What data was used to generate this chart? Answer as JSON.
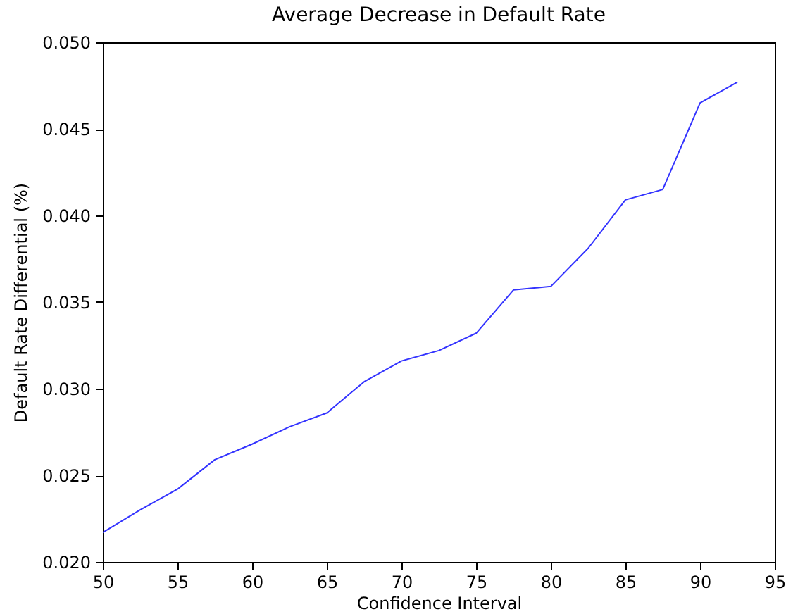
{
  "chart_data": {
    "type": "line",
    "title": "Average Decrease in Default Rate",
    "xlabel": "Confidence Interval",
    "ylabel": "Default Rate Differential (%)",
    "x": [
      50,
      52.5,
      55,
      57.5,
      60,
      62.5,
      65,
      67.5,
      70,
      72.5,
      75,
      77.5,
      80,
      82.5,
      85,
      87.5,
      90,
      92.5
    ],
    "series": [
      {
        "color": "#3333ff",
        "values": [
          0.0217,
          0.023,
          0.0242,
          0.0259,
          0.0268,
          0.0278,
          0.0286,
          0.0304,
          0.0316,
          0.0322,
          0.0332,
          0.0357,
          0.0359,
          0.0381,
          0.0409,
          0.0415,
          0.0465,
          0.0477
        ]
      }
    ],
    "xlim": [
      50,
      95
    ],
    "xticks": [
      50,
      55,
      60,
      65,
      70,
      75,
      80,
      85,
      90,
      95
    ],
    "ylim": [
      0.02,
      0.05
    ],
    "yticks": [
      {
        "value": 0.02,
        "label": "0.020"
      },
      {
        "value": 0.025,
        "label": "0.025"
      },
      {
        "value": 0.03,
        "label": "0.030"
      },
      {
        "value": 0.035,
        "label": "0.035"
      },
      {
        "value": 0.04,
        "label": "0.040"
      },
      {
        "value": 0.045,
        "label": "0.045"
      },
      {
        "value": 0.05,
        "label": "0.050"
      }
    ],
    "grid": false,
    "legend": false,
    "marker": "none",
    "line_style": "solid"
  }
}
